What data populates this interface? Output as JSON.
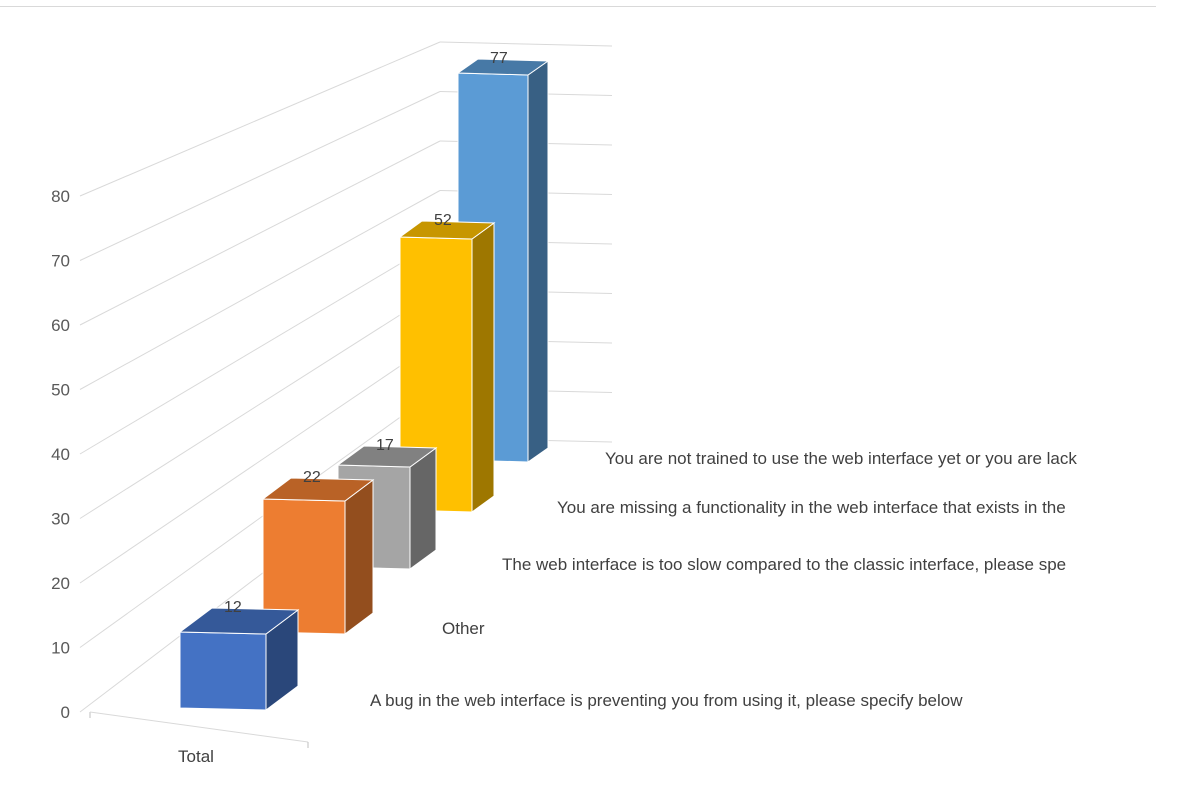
{
  "chart_data": {
    "type": "bar",
    "subtype": "3d-column",
    "categories": [
      "Total"
    ],
    "series": [
      {
        "name": "A bug in the web interface is preventing you from using it, please specify below",
        "value": 12,
        "color": "#4472C4"
      },
      {
        "name": "Other",
        "value": 22,
        "color": "#ED7D31"
      },
      {
        "name": "The web interface is too slow compared to the classic interface, please spe",
        "value": 17,
        "color": "#A5A5A5"
      },
      {
        "name": "You are missing a functionality in the web interface that exists in the",
        "value": 52,
        "color": "#FFC000"
      },
      {
        "name": "You are not trained to use the web interface yet or you are lack",
        "value": 77,
        "color": "#5B9BD5"
      }
    ],
    "yticks": [
      "0",
      "10",
      "20",
      "30",
      "40",
      "50",
      "60",
      "70",
      "80"
    ],
    "ylim": [
      0,
      80
    ],
    "gridlines": true
  }
}
